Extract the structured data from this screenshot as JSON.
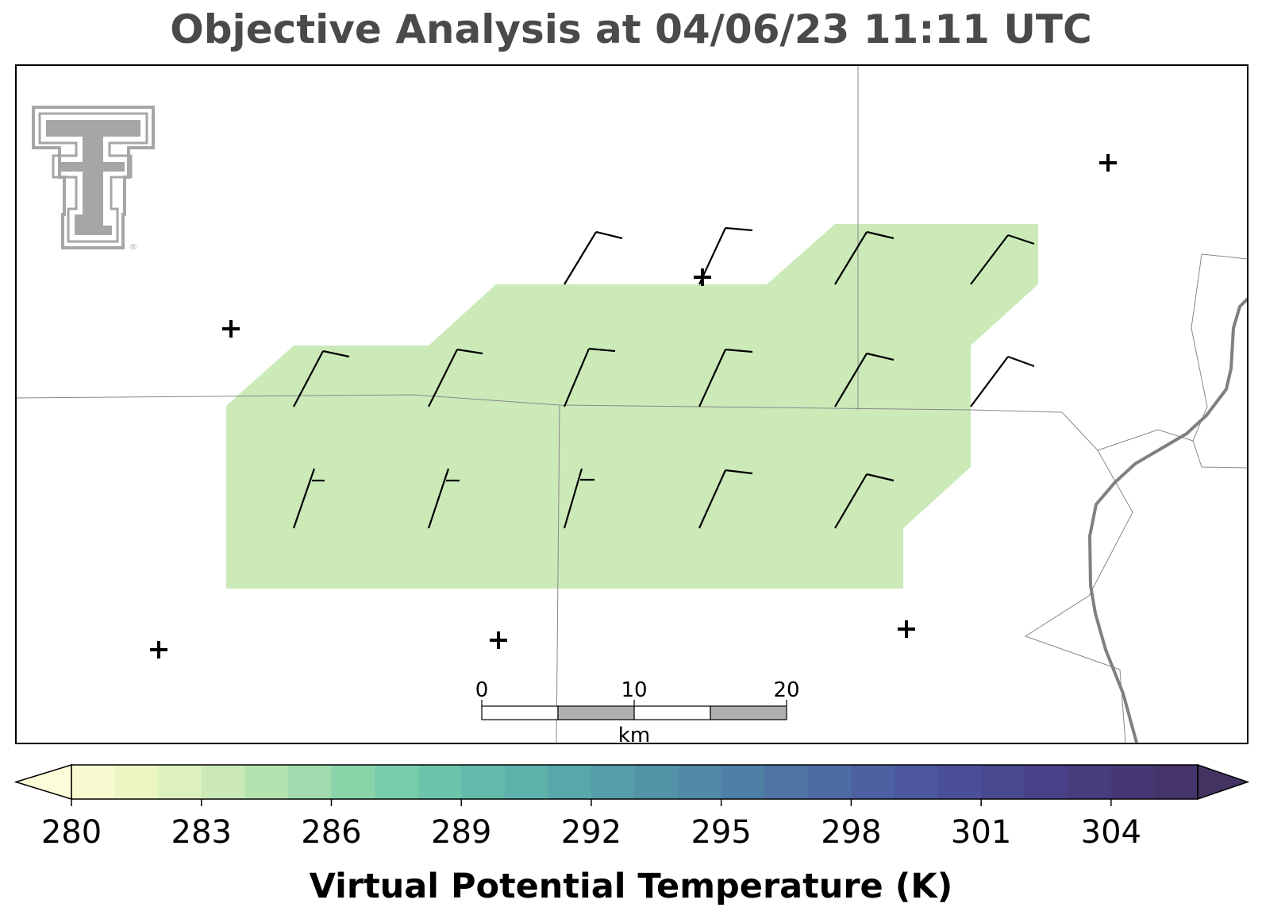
{
  "title": "Objective Analysis at 04/06/23 11:11 UTC",
  "colorbar": {
    "label": "Virtual Potential Temperature (K)",
    "min": 280,
    "max": 306,
    "step": 1,
    "extend": "both",
    "tick_values": [
      280,
      283,
      286,
      289,
      292,
      295,
      298,
      301,
      304
    ],
    "tick_labels": [
      "280",
      "283",
      "286",
      "289",
      "292",
      "295",
      "298",
      "301",
      "304"
    ],
    "colors": [
      "#f8fbcf",
      "#ecf6c2",
      "#ddf1bc",
      "#cbeab8",
      "#b5e3b0",
      "#a0dcad",
      "#8ad4aa",
      "#7acdaa",
      "#6cc4ab",
      "#64baab",
      "#5db1ab",
      "#58a7aa",
      "#559da9",
      "#5393a8",
      "#5189a7",
      "#507fa6",
      "#4f75a5",
      "#4e6ba4",
      "#4d61a2",
      "#4c579f",
      "#4b4f99",
      "#4a4890",
      "#494187",
      "#473c7d",
      "#463873",
      "#45356a"
    ],
    "under_color": "#fcfdd8",
    "over_color": "#433362"
  },
  "analysis": {
    "fill_value_bin": "283–284 K",
    "fill_color": "#cbeab8"
  },
  "scale_bar": {
    "tick_labels": [
      "0",
      "10",
      "20"
    ],
    "unit": "km"
  },
  "logo": {
    "name": "Texas Tech Double T",
    "mark": "®"
  },
  "wind_barbs": [
    {
      "id": "r1c1",
      "direction_deg": 210,
      "speed_kt": 10
    },
    {
      "id": "r1c2",
      "direction_deg": 210,
      "speed_kt": 10
    },
    {
      "id": "r1c3",
      "direction_deg": 210,
      "speed_kt": 10
    },
    {
      "id": "r1c4",
      "direction_deg": 210,
      "speed_kt": 10
    },
    {
      "id": "r2c1",
      "direction_deg": 205,
      "speed_kt": 10
    },
    {
      "id": "r2c2",
      "direction_deg": 205,
      "speed_kt": 10
    },
    {
      "id": "r2c3",
      "direction_deg": 200,
      "speed_kt": 10
    },
    {
      "id": "r2c4",
      "direction_deg": 205,
      "speed_kt": 10
    },
    {
      "id": "r2c5",
      "direction_deg": 215,
      "speed_kt": 10
    },
    {
      "id": "r2c6",
      "direction_deg": 220,
      "speed_kt": 10
    },
    {
      "id": "r3c1",
      "direction_deg": 200,
      "speed_kt": 5
    },
    {
      "id": "r3c2",
      "direction_deg": 200,
      "speed_kt": 5
    },
    {
      "id": "r3c3",
      "direction_deg": 195,
      "speed_kt": 5
    },
    {
      "id": "r3c4",
      "direction_deg": 205,
      "speed_kt": 10
    },
    {
      "id": "r3c5",
      "direction_deg": 215,
      "speed_kt": 10
    }
  ],
  "station_markers": [
    "+",
    "+",
    "+",
    "+",
    "+",
    "+",
    "+"
  ],
  "colors": {
    "title": "#4a4a4a",
    "boundary": "#888888",
    "river": "#808080",
    "logo": "#a6a6a6"
  }
}
